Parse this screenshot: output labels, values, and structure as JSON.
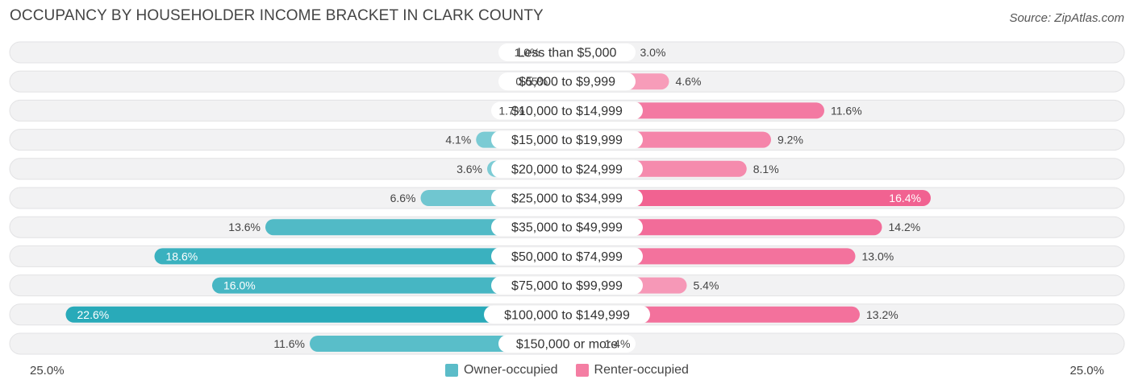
{
  "title": "OCCUPANCY BY HOUSEHOLDER INCOME BRACKET IN CLARK COUNTY",
  "source": "Source: ZipAtlas.com",
  "axis": {
    "left_label": "25.0%",
    "right_label": "25.0%"
  },
  "legend": [
    {
      "label": "Owner-occupied",
      "color": "#5bbcc8"
    },
    {
      "label": "Renter-occupied",
      "color": "#f47ea3"
    }
  ],
  "chart_data": {
    "type": "bar",
    "orientation": "horizontal-diverging",
    "categories": [
      "Less than $5,000",
      "$5,000 to $9,999",
      "$10,000 to $14,999",
      "$15,000 to $19,999",
      "$20,000 to $24,999",
      "$25,000 to $34,999",
      "$35,000 to $49,999",
      "$50,000 to $74,999",
      "$75,000 to $99,999",
      "$100,000 to $149,999",
      "$150,000 or more"
    ],
    "series": [
      {
        "name": "Owner-occupied",
        "values": [
          1.0,
          0.65,
          1.7,
          4.1,
          3.6,
          6.6,
          13.6,
          18.6,
          16.0,
          22.6,
          11.6
        ],
        "labels": [
          "1.0%",
          "0.65%",
          "1.7%",
          "4.1%",
          "3.6%",
          "6.6%",
          "13.6%",
          "18.6%",
          "16.0%",
          "22.6%",
          "11.6%"
        ]
      },
      {
        "name": "Renter-occupied",
        "values": [
          3.0,
          4.6,
          11.6,
          9.2,
          8.1,
          16.4,
          14.2,
          13.0,
          5.4,
          13.2,
          1.4
        ],
        "labels": [
          "3.0%",
          "4.6%",
          "11.6%",
          "9.2%",
          "8.1%",
          "16.4%",
          "14.2%",
          "13.0%",
          "5.4%",
          "13.2%",
          "1.4%"
        ]
      }
    ],
    "xlim": [
      -25,
      25
    ],
    "grid": false,
    "legend_position": "bottom-center"
  }
}
